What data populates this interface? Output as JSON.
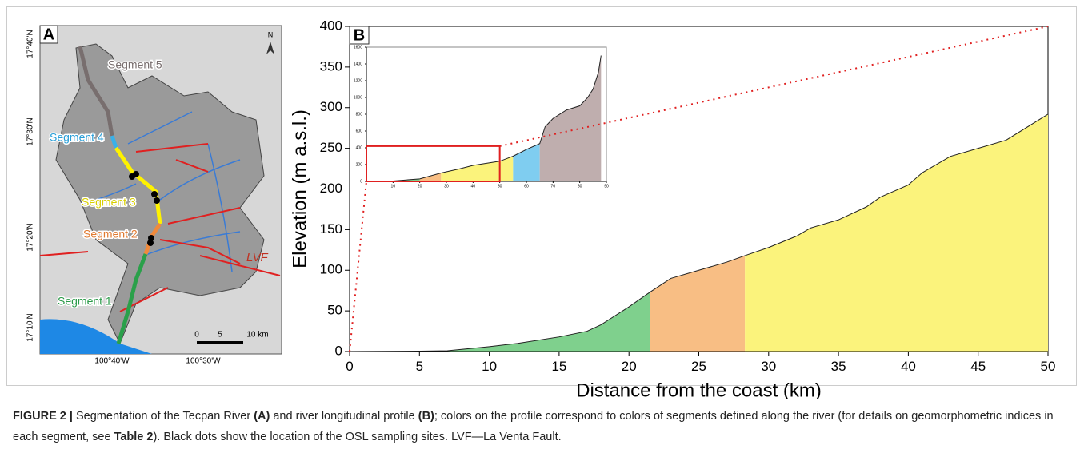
{
  "panel_a": {
    "label": "A",
    "north": "N",
    "lat_labels": [
      "17°40'N",
      "17°30'N",
      "17°20'N",
      "17°10'N"
    ],
    "lon_labels": [
      "100°40'W",
      "100°30'W"
    ],
    "segments": [
      "Segment 5",
      "Segment 4",
      "Segment 3",
      "Segment 2",
      "Segment 1"
    ],
    "fault": "LVF",
    "scale": [
      "0",
      "5",
      "10 km"
    ]
  },
  "chart_data": {
    "type": "area",
    "panel": "B",
    "xlabel": "Distance from the coast (km)",
    "ylabel": "Elevation (m a.s.l.)",
    "x": [
      0,
      5,
      7,
      10,
      12,
      15,
      17,
      18,
      20,
      21.5,
      23,
      25,
      27,
      28.3,
      30,
      32,
      33,
      35,
      37,
      38,
      40,
      41,
      43,
      45,
      47,
      50
    ],
    "values": [
      0,
      0.5,
      1,
      6,
      10,
      18,
      25,
      33,
      55,
      73,
      90,
      100,
      110,
      118,
      128,
      142,
      152,
      162,
      178,
      190,
      205,
      220,
      240,
      250,
      260,
      292
    ],
    "regions": [
      {
        "color": "#7fd08d",
        "xlim": [
          0,
          21.5
        ]
      },
      {
        "color": "#f8be84",
        "xlim": [
          21.5,
          28.3
        ]
      },
      {
        "color": "#fbf37c",
        "xlim": [
          28.3,
          50
        ]
      }
    ],
    "xlim": [
      0,
      50
    ],
    "ylim": [
      0,
      400
    ],
    "xticks": [
      0,
      5,
      10,
      15,
      20,
      25,
      30,
      35,
      40,
      45,
      50
    ],
    "yticks": [
      0,
      50,
      100,
      150,
      200,
      250,
      300,
      350,
      400
    ],
    "inset": {
      "x": [
        0,
        10,
        20,
        28,
        35,
        40,
        50,
        55,
        60,
        65,
        67,
        70,
        75,
        80,
        83,
        85,
        87,
        88
      ],
      "values": [
        0,
        5,
        30,
        100,
        150,
        190,
        240,
        300,
        380,
        450,
        650,
        750,
        850,
        900,
        1000,
        1100,
        1300,
        1500
      ],
      "regions": [
        {
          "color": "#7fd08d",
          "xlim": [
            0,
            20
          ]
        },
        {
          "color": "#f8be84",
          "xlim": [
            20,
            28
          ]
        },
        {
          "color": "#fbf37c",
          "xlim": [
            28,
            55
          ]
        },
        {
          "color": "#7fcdf0",
          "xlim": [
            55,
            65
          ]
        },
        {
          "color": "#bfaeae",
          "xlim": [
            65,
            88
          ]
        }
      ],
      "xlim": [
        0,
        90
      ],
      "ylim": [
        0,
        1600
      ],
      "xticks": [
        10,
        20,
        30,
        40,
        50,
        60,
        70,
        80,
        90
      ],
      "yticks": [
        0,
        200,
        400,
        600,
        800,
        1000,
        1200,
        1400,
        1600
      ],
      "zoom": {
        "xlim": [
          0,
          50
        ],
        "ylim": [
          0,
          420
        ]
      }
    }
  },
  "caption": [
    {
      "text": "FIGURE 2 | ",
      "bold": true
    },
    {
      "text": "Segmentation of the Tecpan River ",
      "bold": false
    },
    {
      "text": "(A)",
      "bold": true
    },
    {
      "text": " and river longitudinal profile ",
      "bold": false
    },
    {
      "text": "(B)",
      "bold": true
    },
    {
      "text": "; colors on the profile correspond to colors of segments defined along the river (for details on geomorphometric indices in each segment, see ",
      "bold": false
    },
    {
      "text": "Table 2",
      "bold": true
    },
    {
      "text": "). Black dots show the location of the OSL sampling sites. LVF—La Venta Fault.",
      "bold": false
    }
  ]
}
